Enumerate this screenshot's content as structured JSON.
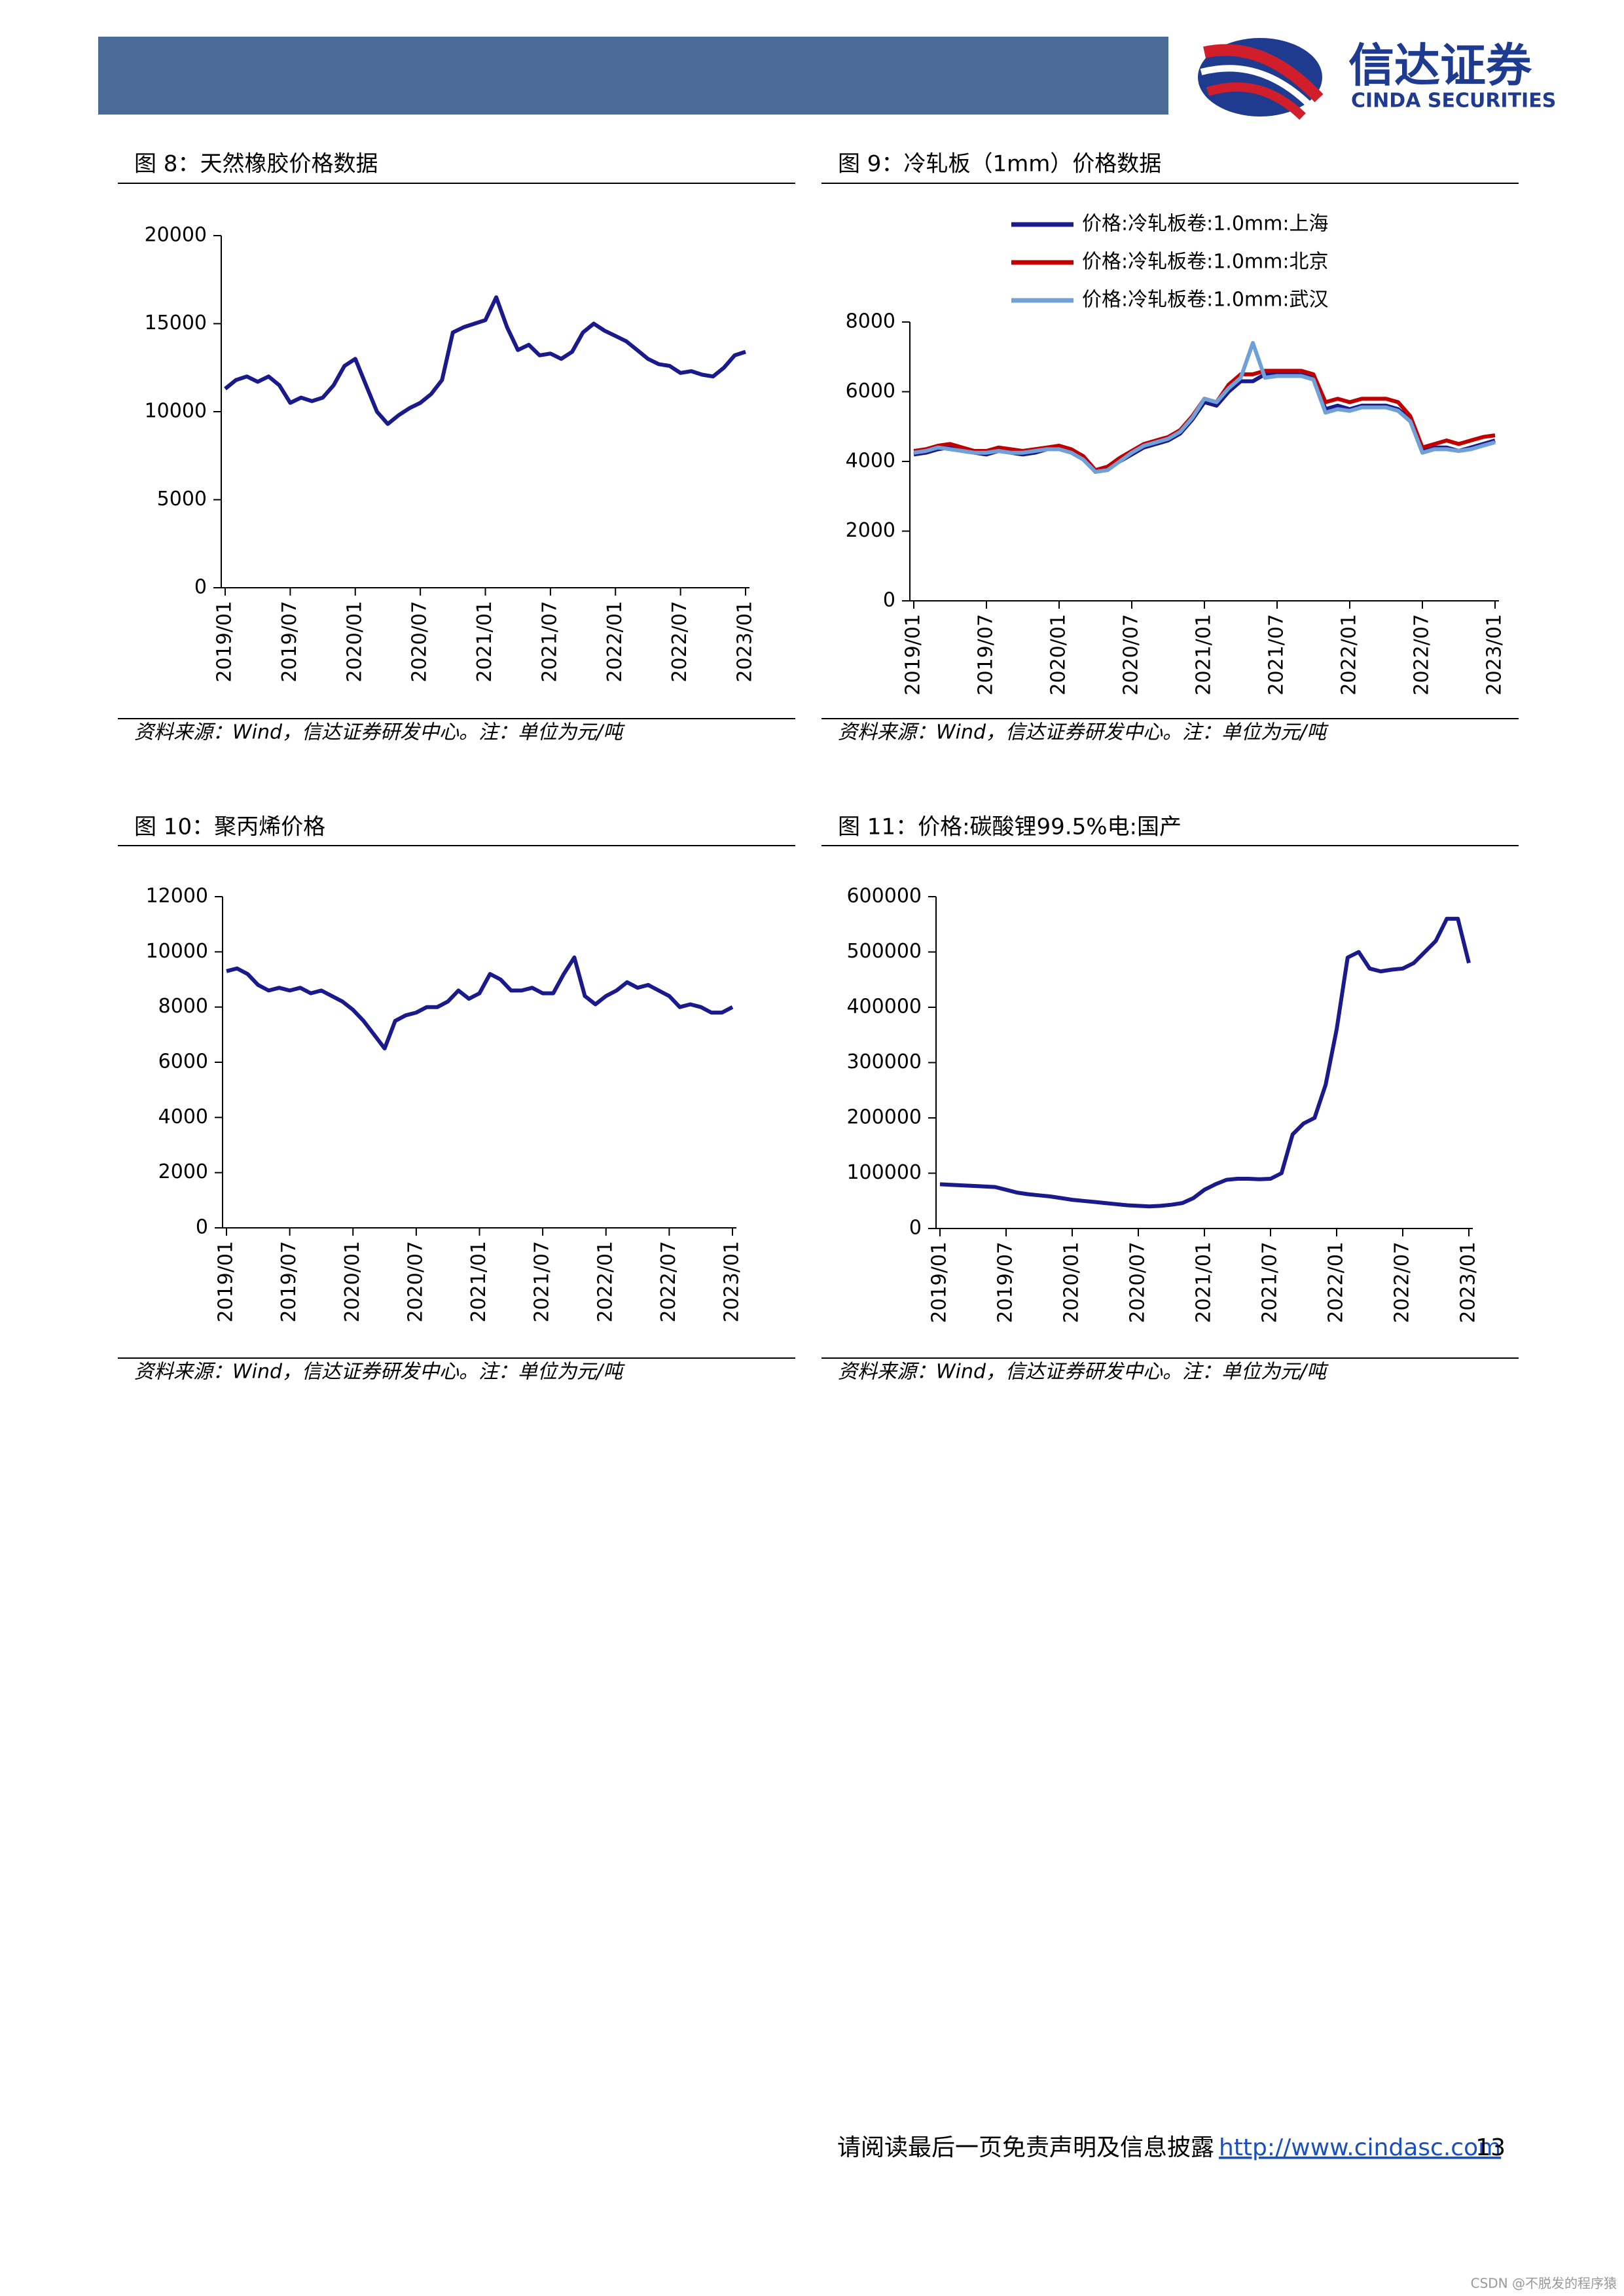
{
  "header": {
    "logo_cn": "信达证券",
    "logo_en": "CINDA SECURITIES"
  },
  "chart_data": [
    {
      "type": "line",
      "title": "图 8：天然橡胶价格数据",
      "source": "资料来源：Wind，信达证券研发中心。注：单位为元/吨",
      "categories": [
        "2019/01",
        null,
        null,
        null,
        null,
        null,
        "2019/07",
        null,
        null,
        null,
        null,
        null,
        "2020/01",
        null,
        null,
        null,
        null,
        null,
        "2020/07",
        null,
        null,
        null,
        null,
        null,
        "2021/01",
        null,
        null,
        null,
        null,
        null,
        "2021/07",
        null,
        null,
        null,
        null,
        null,
        "2022/01",
        null,
        null,
        null,
        null,
        null,
        "2022/07",
        null,
        null,
        null,
        null,
        null,
        "2023/01"
      ],
      "values": [
        11300,
        11800,
        12000,
        11700,
        12000,
        11500,
        10500,
        10800,
        10600,
        10800,
        11500,
        12600,
        13000,
        11500,
        10000,
        9300,
        9800,
        10200,
        10500,
        11000,
        11800,
        14500,
        14800,
        15000,
        15200,
        16500,
        14800,
        13500,
        13800,
        13200,
        13300,
        13000,
        13400,
        14500,
        15000,
        14600,
        14300,
        14000,
        13500,
        13000,
        12700,
        12600,
        12200,
        12300,
        12100,
        12000,
        12500,
        13200,
        13400
      ],
      "color": "#1a1a8c",
      "ylim": [
        0,
        20000
      ],
      "yticks": [
        0,
        5000,
        10000,
        15000,
        20000
      ]
    },
    {
      "type": "line",
      "title": "图 9：冷轧板（1mm）价格数据",
      "source": "资料来源：Wind，信达证券研发中心。注：单位为元/吨",
      "categories": [
        "2019/01",
        null,
        null,
        null,
        null,
        null,
        "2019/07",
        null,
        null,
        null,
        null,
        null,
        "2020/01",
        null,
        null,
        null,
        null,
        null,
        "2020/07",
        null,
        null,
        null,
        null,
        null,
        "2021/01",
        null,
        null,
        null,
        null,
        null,
        "2021/07",
        null,
        null,
        null,
        null,
        null,
        "2022/01",
        null,
        null,
        null,
        null,
        null,
        "2022/07",
        null,
        null,
        null,
        null,
        null,
        "2023/01"
      ],
      "series": [
        {
          "name": "价格:冷轧板卷:1.0mm:上海",
          "color": "#1a1a8c",
          "values": [
            4200,
            4250,
            4350,
            4400,
            4300,
            4250,
            4200,
            4300,
            4250,
            4200,
            4250,
            4350,
            4400,
            4300,
            4100,
            3700,
            3800,
            4000,
            4200,
            4400,
            4500,
            4600,
            4800,
            5200,
            5700,
            5600,
            6000,
            6300,
            6300,
            6500,
            6500,
            6500,
            6500,
            6400,
            5500,
            5600,
            5500,
            5600,
            5600,
            5600,
            5500,
            5200,
            4300,
            4400,
            4400,
            4300,
            4400,
            4500,
            4600
          ]
        },
        {
          "name": "价格:冷轧板卷:1.0mm:北京",
          "color": "#c00000",
          "values": [
            4300,
            4350,
            4450,
            4500,
            4400,
            4300,
            4300,
            4400,
            4350,
            4300,
            4350,
            4400,
            4450,
            4350,
            4150,
            3750,
            3850,
            4100,
            4300,
            4500,
            4600,
            4700,
            4900,
            5300,
            5800,
            5700,
            6200,
            6500,
            6500,
            6600,
            6600,
            6600,
            6600,
            6500,
            5700,
            5800,
            5700,
            5800,
            5800,
            5800,
            5700,
            5300,
            4400,
            4500,
            4600,
            4500,
            4600,
            4700,
            4750
          ]
        },
        {
          "name": "价格:冷轧板卷:1.0mm:武汉",
          "color": "#6fa0d8",
          "values": [
            4250,
            4300,
            4400,
            4350,
            4300,
            4250,
            4250,
            4300,
            4250,
            4250,
            4300,
            4350,
            4350,
            4250,
            4050,
            3700,
            3750,
            4000,
            4250,
            4450,
            4550,
            4650,
            4850,
            5250,
            5800,
            5700,
            6100,
            6400,
            7400,
            6400,
            6450,
            6450,
            6450,
            6350,
            5400,
            5500,
            5450,
            5550,
            5550,
            5550,
            5450,
            5150,
            4250,
            4350,
            4350,
            4300,
            4350,
            4450,
            4550
          ]
        }
      ],
      "ylim": [
        0,
        8000
      ],
      "yticks": [
        0,
        2000,
        4000,
        6000,
        8000
      ]
    },
    {
      "type": "line",
      "title": "图 10：聚丙烯价格",
      "source": "资料来源：Wind，信达证券研发中心。注：单位为元/吨",
      "categories": [
        "2019/01",
        null,
        null,
        null,
        null,
        null,
        "2019/07",
        null,
        null,
        null,
        null,
        null,
        "2020/01",
        null,
        null,
        null,
        null,
        null,
        "2020/07",
        null,
        null,
        null,
        null,
        null,
        "2021/01",
        null,
        null,
        null,
        null,
        null,
        "2021/07",
        null,
        null,
        null,
        null,
        null,
        "2022/01",
        null,
        null,
        null,
        null,
        null,
        "2022/07",
        null,
        null,
        null,
        null,
        null,
        "2023/01"
      ],
      "values": [
        9300,
        9400,
        9200,
        8800,
        8600,
        8700,
        8600,
        8700,
        8500,
        8600,
        8400,
        8200,
        7900,
        7500,
        7000,
        6500,
        7500,
        7700,
        7800,
        8000,
        8000,
        8200,
        8600,
        8300,
        8500,
        9200,
        9000,
        8600,
        8600,
        8700,
        8500,
        8500,
        9200,
        9800,
        8400,
        8100,
        8400,
        8600,
        8900,
        8700,
        8800,
        8600,
        8400,
        8000,
        8100,
        8000,
        7800,
        7800,
        8000
      ],
      "color": "#1a1a8c",
      "ylim": [
        0,
        12000
      ],
      "yticks": [
        0,
        2000,
        4000,
        6000,
        8000,
        10000,
        12000
      ]
    },
    {
      "type": "line",
      "title": "图 11：价格:碳酸锂99.5%电:国产",
      "source": "资料来源：Wind，信达证券研发中心。注：单位为元/吨",
      "categories": [
        "2019/01",
        null,
        null,
        null,
        null,
        null,
        "2019/07",
        null,
        null,
        null,
        null,
        null,
        "2020/01",
        null,
        null,
        null,
        null,
        null,
        "2020/07",
        null,
        null,
        null,
        null,
        null,
        "2021/01",
        null,
        null,
        null,
        null,
        null,
        "2021/07",
        null,
        null,
        null,
        null,
        null,
        "2022/01",
        null,
        null,
        null,
        null,
        null,
        "2022/07",
        null,
        null,
        null,
        null,
        null,
        "2023/01"
      ],
      "values": [
        80000,
        79000,
        78000,
        77000,
        76000,
        75000,
        70000,
        65000,
        62000,
        60000,
        58000,
        55000,
        52000,
        50000,
        48000,
        46000,
        44000,
        42000,
        41000,
        40000,
        41000,
        43000,
        46000,
        55000,
        70000,
        80000,
        88000,
        90000,
        90000,
        89000,
        90000,
        100000,
        170000,
        190000,
        200000,
        260000,
        360000,
        490000,
        500000,
        470000,
        465000,
        468000,
        470000,
        480000,
        500000,
        520000,
        560000,
        560000,
        480000
      ],
      "color": "#1a1a8c",
      "ylim": [
        0,
        600000
      ],
      "yticks": [
        0,
        100000,
        200000,
        300000,
        400000,
        500000,
        600000
      ]
    }
  ],
  "footer": {
    "notice": "请阅读最后一页免责声明及信息披露",
    "url": "http://www.cindasc.com",
    "page": "13",
    "watermark": "CSDN @不脱发的程序猿"
  }
}
